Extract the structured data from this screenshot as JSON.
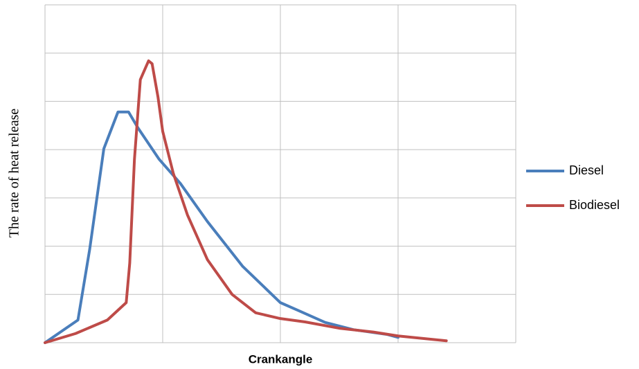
{
  "chart_data": {
    "type": "line",
    "xlabel": "Crankangle",
    "ylabel": "The rate of heat release",
    "xlim": [
      0,
      4
    ],
    "ylim": [
      0,
      7
    ],
    "xticks": [
      0,
      1,
      2,
      3,
      4
    ],
    "yticks": [
      0,
      1,
      2,
      3,
      4,
      5,
      6,
      7
    ],
    "grid": true,
    "legend": "right",
    "series": [
      {
        "name": "Diesel",
        "color": "#4a7ebb",
        "x": [
          0,
          0.28,
          0.38,
          0.5,
          0.62,
          0.71,
          0.79,
          0.97,
          1.15,
          1.38,
          1.68,
          2.0,
          2.15,
          2.38,
          2.62,
          2.91,
          3.0
        ],
        "values": [
          0,
          0.47,
          1.94,
          4.02,
          4.78,
          4.78,
          4.45,
          3.8,
          3.3,
          2.51,
          1.58,
          0.83,
          0.67,
          0.42,
          0.27,
          0.17,
          0.11
        ]
      },
      {
        "name": "Biodiesel",
        "color": "#be4b48",
        "x": [
          0,
          0.26,
          0.53,
          0.69,
          0.72,
          0.76,
          0.81,
          0.88,
          0.91,
          0.96,
          1.0,
          1.09,
          1.21,
          1.38,
          1.59,
          1.79,
          2.0,
          2.21,
          2.5,
          2.79,
          3.0,
          3.41
        ],
        "values": [
          0,
          0.19,
          0.47,
          0.83,
          1.65,
          3.8,
          5.45,
          5.84,
          5.78,
          5.09,
          4.38,
          3.51,
          2.65,
          1.72,
          1.0,
          0.62,
          0.5,
          0.43,
          0.3,
          0.22,
          0.14,
          0.04
        ]
      }
    ]
  }
}
